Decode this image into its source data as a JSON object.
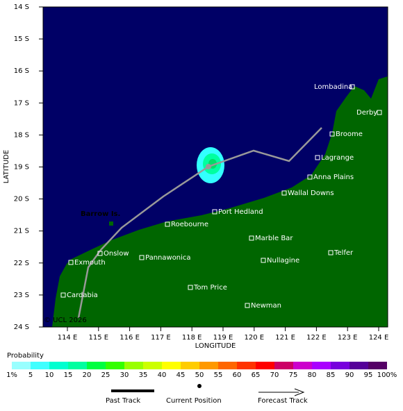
{
  "map": {
    "lat_ticks": [
      "14 S",
      "15 S",
      "16 S",
      "17 S",
      "18 S",
      "19 S",
      "20 S",
      "21 S",
      "22 S",
      "23 S",
      "24 S"
    ],
    "lon_ticks": [
      "114 E",
      "115 E",
      "116 E",
      "117 E",
      "118 E",
      "119 E",
      "120 E",
      "121 E",
      "122 E",
      "123 E",
      "124 E"
    ],
    "y_axis_label": "LATITUDE",
    "x_axis_label": "LONGITUDE",
    "places": [
      "Lombadina",
      "Derby",
      "Broome",
      "Lagrange",
      "Anna Plains",
      "Wallal Downs",
      "Port Hedland",
      "Roebourne",
      "Onslow",
      "Exmouth",
      "Pannawonica",
      "Marble Bar",
      "Nullagine",
      "Telfer",
      "Tom Price",
      "Cardabia",
      "Newman"
    ],
    "island": "Barrow Is.",
    "copyright": "© UCL 2026"
  },
  "legend": {
    "title": "Probability",
    "colors": [
      "#99ffff",
      "#40ffff",
      "#00ffd0",
      "#00ffa0",
      "#00ff40",
      "#33ff00",
      "#99ff00",
      "#ccff00",
      "#ffff00",
      "#ffcc00",
      "#ff9900",
      "#ff6600",
      "#ff3300",
      "#ff0000",
      "#cc0066",
      "#cc00cc",
      "#aa00ff",
      "#7700dd",
      "#550099",
      "#550066"
    ],
    "labels": [
      "1%",
      "5",
      "10",
      "15",
      "20",
      "25",
      "30",
      "35",
      "40",
      "45",
      "50",
      "55",
      "60",
      "65",
      "70",
      "75",
      "80",
      "85",
      "90",
      "95",
      "100%"
    ],
    "past_track": "Past Track",
    "current_position": "Current Position",
    "forecast_track": "Forecast Track"
  }
}
